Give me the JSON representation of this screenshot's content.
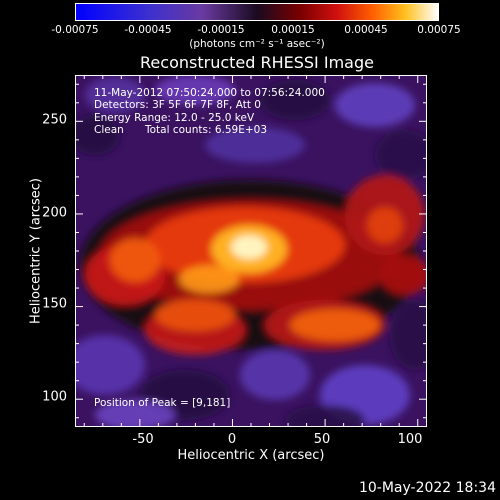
{
  "colorbar": {
    "ticks": [
      "-0.00075",
      "-0.00045",
      "-0.00015",
      "0.00015",
      "0.00045",
      "0.00075"
    ],
    "unit": "(photons cm⁻² s⁻¹ asec⁻²)",
    "colors": [
      "#0000ff",
      "#6a3aa0",
      "#1a0a20",
      "#d01010",
      "#ff6000",
      "#ffffff"
    ]
  },
  "chart_data": {
    "type": "heatmap",
    "title": "Reconstructed RHESSI Image",
    "xlabel": "Heliocentric X (arcsec)",
    "ylabel": "Heliocentric Y (arcsec)",
    "xlim": [
      -85,
      105
    ],
    "ylim": [
      85,
      275
    ],
    "x_ticks": [
      "-50",
      "0",
      "50",
      "100"
    ],
    "y_ticks": [
      "100",
      "150",
      "200",
      "250"
    ],
    "colormap": "RHESSI red-temperature",
    "value_range": [
      -0.00075,
      0.00075
    ],
    "peak": {
      "x": 9,
      "y": 181
    },
    "annotations": {
      "time_range": "11-May-2012 07:50:24.000 to 07:56:24.000",
      "detectors": "Detectors: 3F 5F 6F 7F 8F, Att 0",
      "energy": "Energy Range: 12.0 - 25.0 keV",
      "method": "Clean",
      "counts": "Total counts: 6.59E+03",
      "peak_label": "Position of Peak = [9,181]"
    }
  },
  "footer": {
    "date": "10-May-2022 18:34"
  }
}
